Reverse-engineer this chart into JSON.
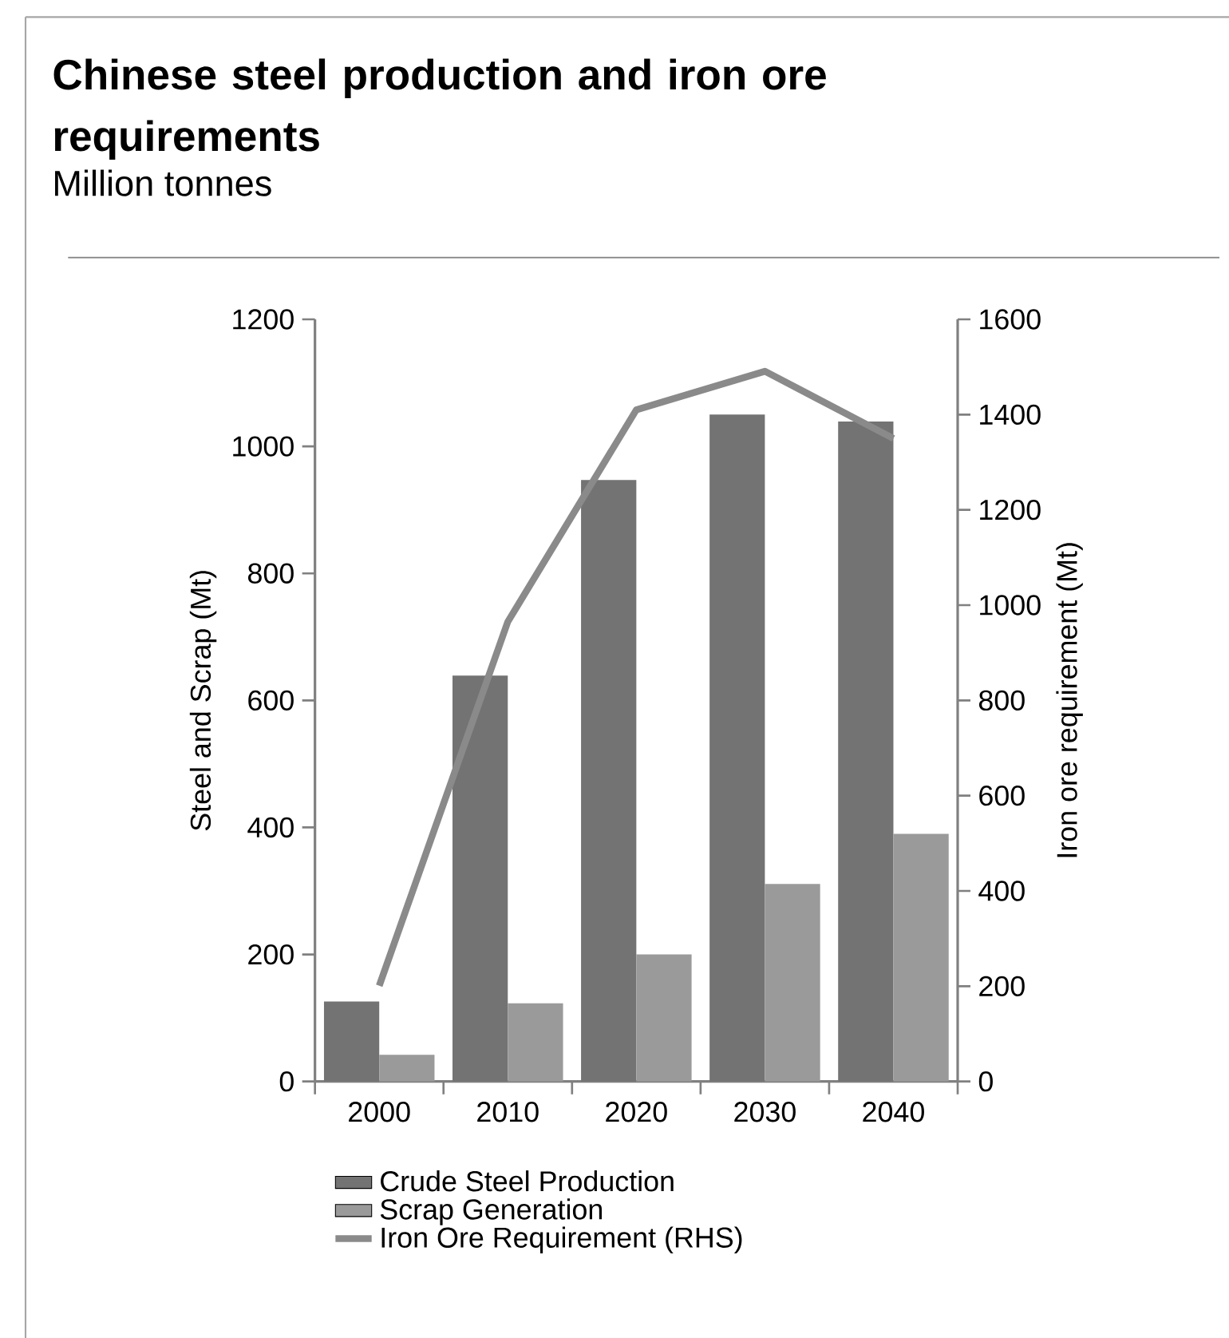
{
  "chart_data": {
    "type": "bar",
    "title": "Chinese steel production and iron ore requirements",
    "subtitle": "Million tonnes",
    "categories": [
      "2000",
      "2010",
      "2020",
      "2030",
      "2040"
    ],
    "ylabel": "Steel and Scrap (Mt)",
    "y2label": "Iron ore requirement (Mt)",
    "ylim": [
      0,
      1200
    ],
    "yticks": [
      0,
      200,
      400,
      600,
      800,
      1000,
      1200
    ],
    "y2lim": [
      0,
      1600
    ],
    "y2ticks": [
      0,
      200,
      400,
      600,
      800,
      1000,
      1200,
      1400,
      1600
    ],
    "series": [
      {
        "name": "Crude Steel Production",
        "color": "#737373",
        "values": [
          126,
          639,
          947,
          1050,
          1039
        ]
      },
      {
        "name": "Scrap Generation",
        "color": "#9a9a9a",
        "values": [
          42,
          123,
          200,
          311,
          390
        ]
      },
      {
        "name": "Iron Ore Requirement (RHS)",
        "type": "line",
        "axis": "y2",
        "color": "#8a8a8a",
        "values": [
          201,
          965,
          1410,
          1491,
          1350
        ]
      }
    ],
    "grid": false,
    "legend": "bottom"
  }
}
